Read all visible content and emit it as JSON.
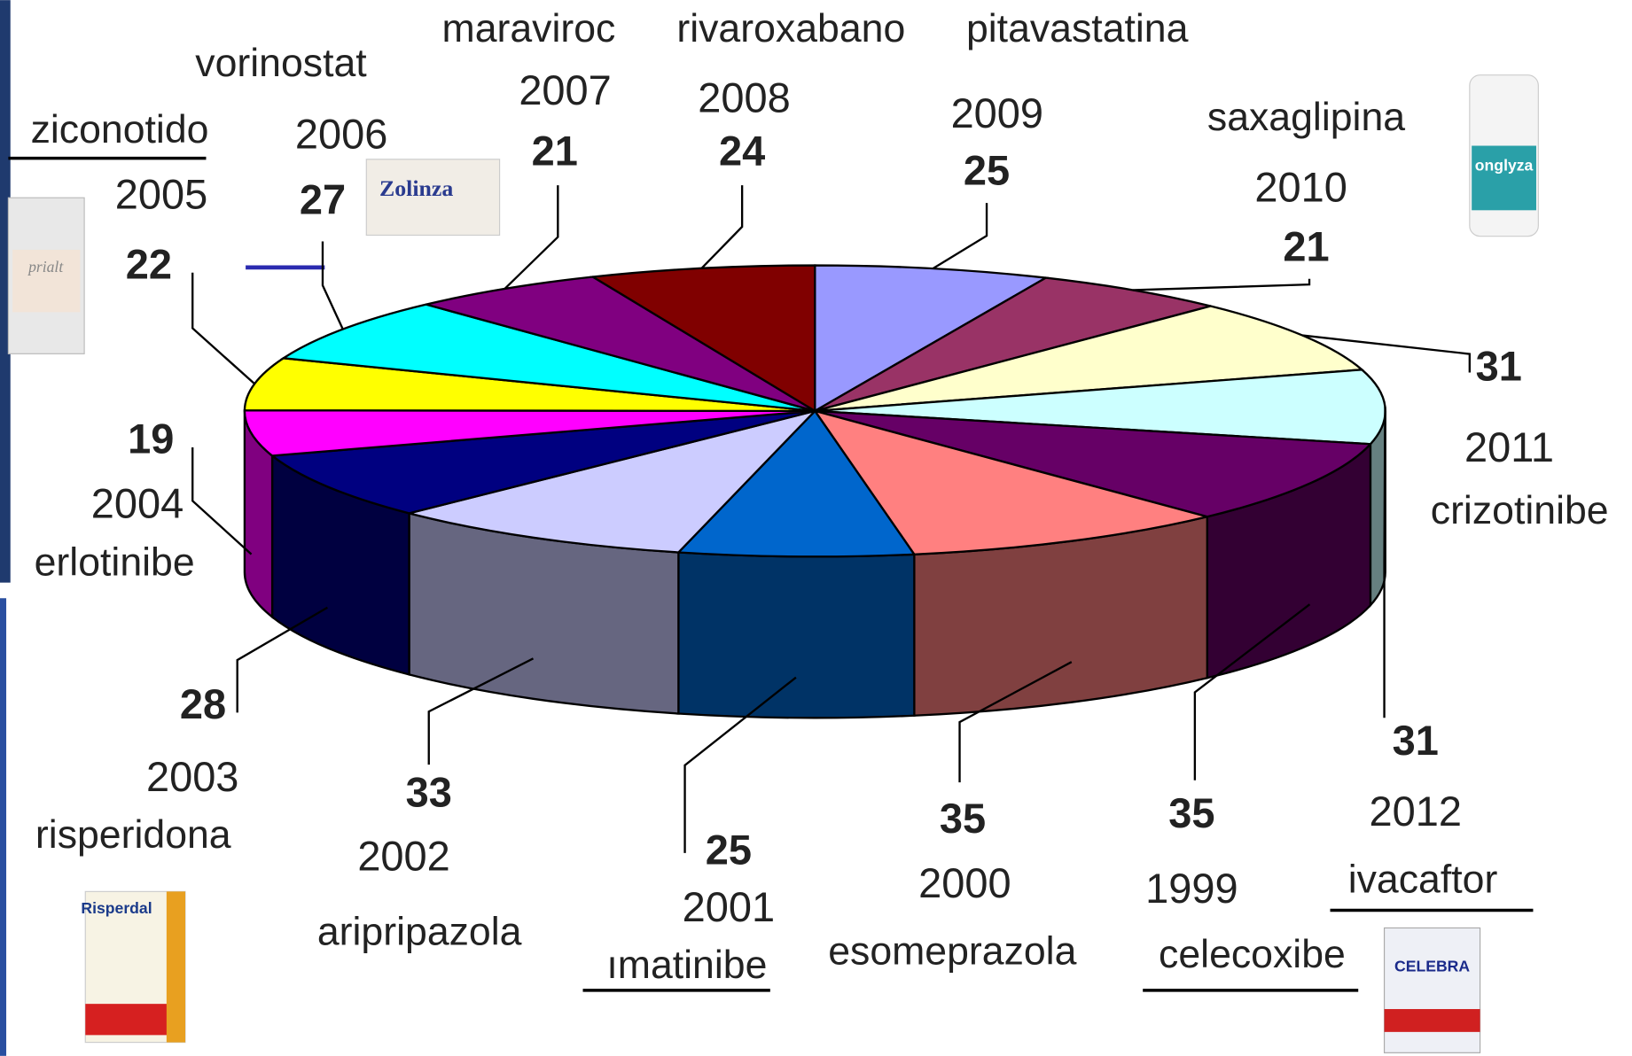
{
  "chart_data": {
    "type": "pie3d",
    "categories": [
      "2009",
      "2010",
      "2011",
      "2012",
      "1999",
      "2000",
      "2001",
      "2002",
      "2003",
      "2004",
      "2005",
      "2006",
      "2007",
      "2008"
    ],
    "labels": [
      "pitavastatina",
      "saxaglipina",
      "crizotinibe",
      "ivacaftor",
      "celecoxibe",
      "esomeprazola",
      "ımatinibe",
      "aripripazola",
      "risperidona",
      "erlotinibe",
      "ziconotido",
      "vorinostat",
      "maraviroc",
      "rivaroxabano"
    ],
    "values": [
      25,
      21,
      31,
      31,
      35,
      35,
      25,
      33,
      28,
      19,
      22,
      27,
      21,
      24
    ],
    "colors": [
      "#9999ff",
      "#993366",
      "#ffffcc",
      "#ccffff",
      "#660066",
      "#ff8080",
      "#0066cc",
      "#ccccff",
      "#000080",
      "#ff00ff",
      "#ffff00",
      "#00ffff",
      "#800080",
      "#800000"
    ]
  },
  "products": [
    "Zolinza",
    "onglyza",
    "CELEBRA",
    "Risperdal",
    "prialt"
  ]
}
